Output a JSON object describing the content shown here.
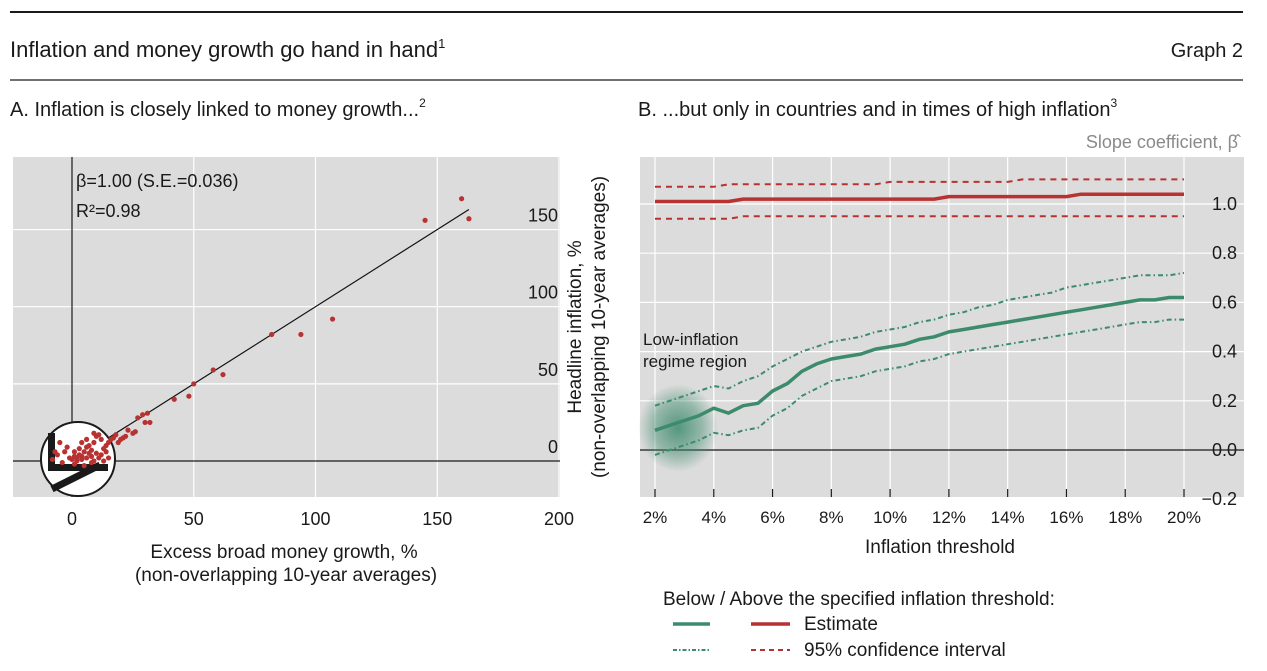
{
  "header": {
    "title": "Inflation and money growth go hand in hand",
    "title_sup": "1",
    "graph_label": "Graph 2"
  },
  "panelA": {
    "title": "A. Inflation is closely linked to money growth...",
    "title_sup": "2",
    "stat_beta": "β=1.00 (S.E.=0.036)",
    "stat_r2": "R²=0.98",
    "xlabel_line1": "Excess broad money growth, %",
    "xlabel_line2": "(non-overlapping 10-year averages)",
    "ylabel_line1": "Headline inflation, %",
    "ylabel_line2": "(non-overlapping 10-year averages)"
  },
  "panelB": {
    "title": "B. ...but only in countries and in times of high inflation",
    "title_sup": "3",
    "yaxis_title": "Slope coefficient, β̂",
    "xlabel": "Inflation threshold",
    "annotation_line1": "Low-inflation",
    "annotation_line2": "regime region"
  },
  "legend": {
    "heading": "Below / Above the specified inflation threshold:",
    "estimate": "Estimate",
    "ci": "95% confidence interval"
  },
  "colors": {
    "below": "#3d8b6d",
    "above": "#b83232",
    "scatter": "#b83232",
    "plot_bg": "#dcdcdc",
    "grid": "#ffffff"
  },
  "chart_data": [
    {
      "type": "scatter",
      "xlim": [
        -25,
        200
      ],
      "ylim": [
        -25,
        200
      ],
      "xticks": [
        0,
        50,
        100,
        150,
        200
      ],
      "yticks": [
        0,
        50,
        100,
        150
      ],
      "grid": true,
      "fit_line": {
        "slope": 1.0,
        "intercept": 0
      },
      "points": [
        [
          160,
          170
        ],
        [
          145,
          156
        ],
        [
          163,
          157
        ],
        [
          107,
          92
        ],
        [
          94,
          82
        ],
        [
          82,
          82
        ],
        [
          62,
          56
        ],
        [
          58,
          59
        ],
        [
          50,
          50
        ],
        [
          48,
          42
        ],
        [
          42,
          40
        ],
        [
          32,
          25
        ],
        [
          30,
          25
        ],
        [
          31,
          31
        ],
        [
          29,
          30
        ],
        [
          27,
          28
        ],
        [
          26,
          19
        ],
        [
          25,
          18
        ],
        [
          23,
          20
        ],
        [
          22,
          16
        ],
        [
          21,
          15
        ],
        [
          20,
          14
        ],
        [
          19,
          12
        ],
        [
          18,
          17
        ],
        [
          17,
          15
        ],
        [
          16,
          14
        ],
        [
          15,
          12
        ],
        [
          14,
          10
        ],
        [
          13,
          8
        ],
        [
          12,
          14
        ],
        [
          11,
          17
        ],
        [
          10,
          16
        ],
        [
          9,
          12
        ],
        [
          8,
          7
        ],
        [
          7,
          5
        ],
        [
          6,
          9
        ],
        [
          5,
          6
        ],
        [
          4,
          3
        ],
        [
          3,
          4
        ],
        [
          2,
          2
        ],
        [
          1,
          3
        ],
        [
          0,
          1
        ],
        [
          -1,
          2
        ],
        [
          10,
          5
        ],
        [
          8,
          3
        ],
        [
          6,
          2
        ],
        [
          4,
          1
        ],
        [
          2,
          0
        ],
        [
          12,
          4
        ],
        [
          14,
          6
        ],
        [
          -3,
          6
        ],
        [
          -6,
          4
        ],
        [
          -8,
          1
        ],
        [
          -4,
          -1
        ],
        [
          1,
          -2
        ],
        [
          5,
          -3
        ],
        [
          9,
          0
        ],
        [
          11,
          2
        ],
        [
          7,
          10
        ],
        [
          3,
          8
        ],
        [
          -2,
          9
        ],
        [
          -5,
          12
        ],
        [
          15,
          2
        ],
        [
          13,
          0
        ],
        [
          8,
          -1
        ],
        [
          4,
          12
        ],
        [
          9,
          18
        ],
        [
          1,
          6
        ],
        [
          -7,
          6
        ],
        [
          6,
          14
        ]
      ]
    },
    {
      "type": "line",
      "x": [
        2,
        2.5,
        3,
        3.5,
        4,
        4.5,
        5,
        5.5,
        6,
        6.5,
        7,
        7.5,
        8,
        8.5,
        9,
        9.5,
        10,
        10.5,
        11,
        11.5,
        12,
        12.5,
        13,
        13.5,
        14,
        14.5,
        15,
        15.5,
        16,
        16.5,
        17,
        17.5,
        18,
        18.5,
        19,
        19.5,
        20
      ],
      "x_tick_labels": [
        "2%",
        "4%",
        "6%",
        "8%",
        "10%",
        "12%",
        "14%",
        "16%",
        "18%",
        "20%"
      ],
      "xlim": [
        1.5,
        20.5
      ],
      "ylim": [
        -0.25,
        1.2
      ],
      "yticks": [
        -0.2,
        0.0,
        0.2,
        0.4,
        0.6,
        0.8,
        1.0
      ],
      "y_tick_labels": [
        "−0.2",
        "0.0",
        "0.2",
        "0.4",
        "0.6",
        "0.8",
        "1.0"
      ],
      "zero_line": true,
      "series": [
        {
          "name": "Below (Estimate)",
          "style": "solid",
          "color": "#3d8b6d",
          "values": [
            0.08,
            0.1,
            0.12,
            0.14,
            0.17,
            0.15,
            0.18,
            0.19,
            0.24,
            0.27,
            0.32,
            0.35,
            0.37,
            0.38,
            0.39,
            0.41,
            0.42,
            0.43,
            0.45,
            0.46,
            0.48,
            0.49,
            0.5,
            0.51,
            0.52,
            0.53,
            0.54,
            0.55,
            0.56,
            0.57,
            0.58,
            0.59,
            0.6,
            0.61,
            0.61,
            0.62,
            0.62
          ]
        },
        {
          "name": "Below (95% CI upper)",
          "style": "dashed",
          "color": "#3d8b6d",
          "values": [
            0.18,
            0.2,
            0.22,
            0.24,
            0.26,
            0.25,
            0.28,
            0.3,
            0.34,
            0.37,
            0.4,
            0.42,
            0.44,
            0.45,
            0.46,
            0.48,
            0.49,
            0.5,
            0.52,
            0.53,
            0.55,
            0.56,
            0.58,
            0.59,
            0.61,
            0.62,
            0.63,
            0.64,
            0.66,
            0.67,
            0.68,
            0.69,
            0.7,
            0.71,
            0.71,
            0.71,
            0.72
          ]
        },
        {
          "name": "Below (95% CI lower)",
          "style": "dashed",
          "color": "#3d8b6d",
          "values": [
            -0.02,
            0.0,
            0.02,
            0.04,
            0.07,
            0.06,
            0.08,
            0.09,
            0.14,
            0.17,
            0.22,
            0.25,
            0.28,
            0.29,
            0.3,
            0.32,
            0.33,
            0.34,
            0.36,
            0.37,
            0.39,
            0.4,
            0.41,
            0.42,
            0.43,
            0.44,
            0.45,
            0.46,
            0.47,
            0.48,
            0.49,
            0.5,
            0.51,
            0.52,
            0.52,
            0.53,
            0.53
          ]
        },
        {
          "name": "Above (Estimate)",
          "style": "solid",
          "color": "#b83232",
          "values": [
            1.01,
            1.01,
            1.01,
            1.01,
            1.01,
            1.01,
            1.02,
            1.02,
            1.02,
            1.02,
            1.02,
            1.02,
            1.02,
            1.02,
            1.02,
            1.02,
            1.02,
            1.02,
            1.02,
            1.02,
            1.03,
            1.03,
            1.03,
            1.03,
            1.03,
            1.03,
            1.03,
            1.03,
            1.03,
            1.04,
            1.04,
            1.04,
            1.04,
            1.04,
            1.04,
            1.04,
            1.04
          ]
        },
        {
          "name": "Above (95% CI upper)",
          "style": "dashed",
          "color": "#b83232",
          "values": [
            1.07,
            1.07,
            1.07,
            1.07,
            1.07,
            1.08,
            1.08,
            1.08,
            1.08,
            1.08,
            1.08,
            1.08,
            1.08,
            1.08,
            1.08,
            1.08,
            1.09,
            1.09,
            1.09,
            1.09,
            1.09,
            1.09,
            1.09,
            1.09,
            1.09,
            1.1,
            1.1,
            1.1,
            1.1,
            1.1,
            1.1,
            1.1,
            1.1,
            1.1,
            1.1,
            1.1,
            1.1
          ]
        },
        {
          "name": "Above (95% CI lower)",
          "style": "dashed",
          "color": "#b83232",
          "values": [
            0.94,
            0.94,
            0.94,
            0.94,
            0.94,
            0.94,
            0.95,
            0.95,
            0.95,
            0.95,
            0.95,
            0.95,
            0.95,
            0.95,
            0.95,
            0.95,
            0.95,
            0.95,
            0.95,
            0.95,
            0.95,
            0.95,
            0.95,
            0.95,
            0.95,
            0.95,
            0.95,
            0.95,
            0.95,
            0.95,
            0.95,
            0.95,
            0.95,
            0.95,
            0.95,
            0.95,
            0.95
          ]
        }
      ]
    }
  ]
}
